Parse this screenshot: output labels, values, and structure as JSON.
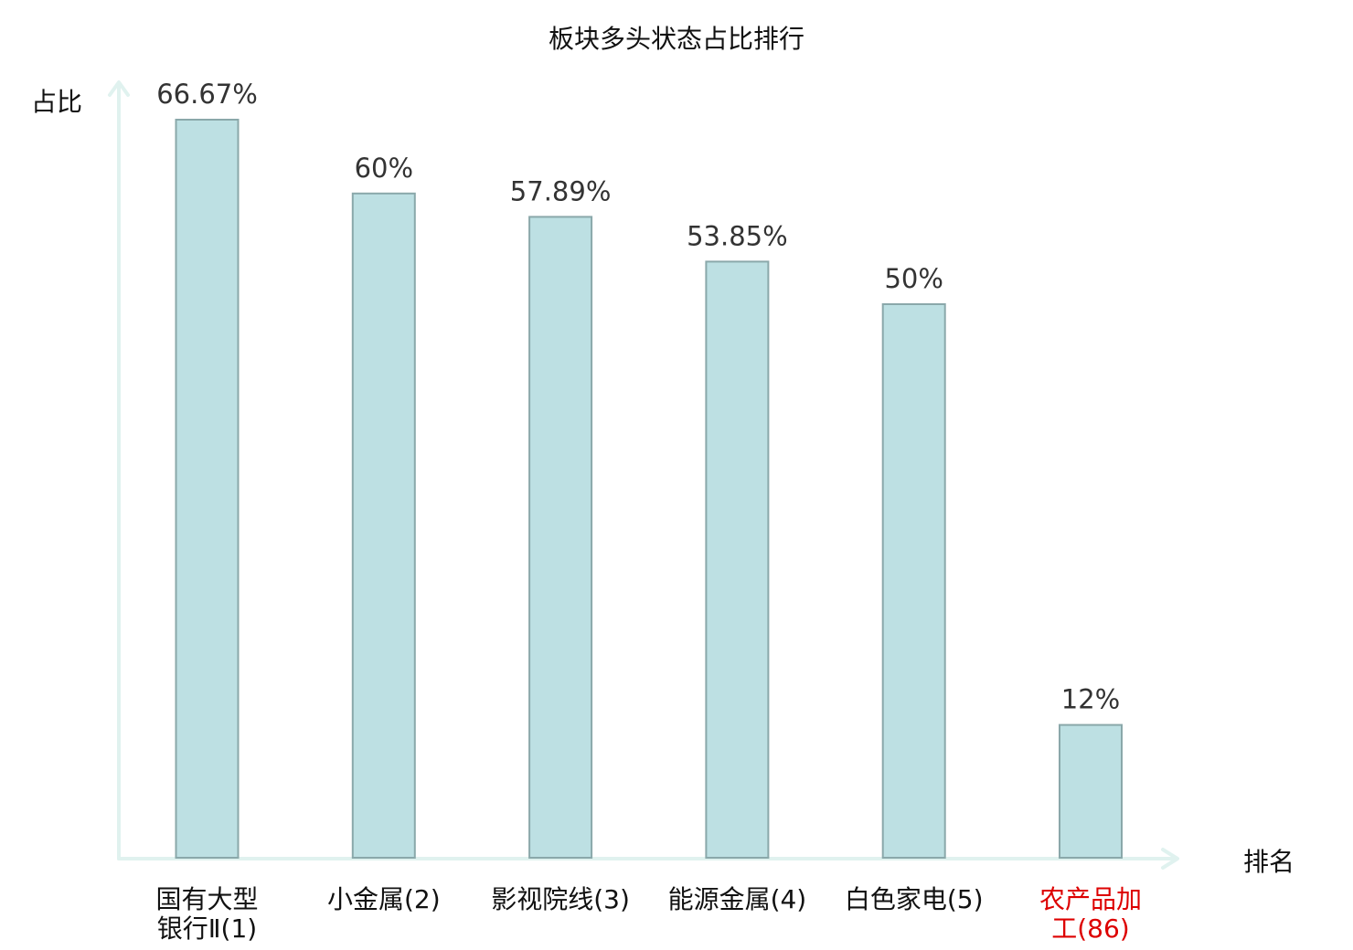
{
  "chart_data": {
    "type": "bar",
    "title": "板块多头状态占比排行",
    "ylabel": "占比",
    "xlabel": "排名",
    "ylim": [
      0,
      70
    ],
    "grid": false,
    "legend": "none",
    "categories": [
      "国有大型银行Ⅱ(1)",
      "小金属(2)",
      "影视院线(3)",
      "能源金属(4)",
      "白色家电(5)",
      "农产品加工(86)"
    ],
    "category_lines": [
      [
        "国有大型",
        "银行Ⅱ(1)"
      ],
      [
        "小金属(2)"
      ],
      [
        "影视院线(3)"
      ],
      [
        "能源金属(4)"
      ],
      [
        "白色家电(5)"
      ],
      [
        "农产品加",
        "工(86)"
      ]
    ],
    "values": [
      66.67,
      60,
      57.89,
      53.85,
      50,
      12
    ],
    "value_labels": [
      "66.67%",
      "60%",
      "57.89%",
      "53.85%",
      "50%",
      "12%"
    ],
    "highlight": [
      false,
      false,
      false,
      false,
      false,
      true
    ]
  },
  "colors": {
    "bar_fill": "#bde0e3",
    "bar_stroke": "#8aa8aa",
    "axis": "#e0f2ef",
    "label_default": "#111111",
    "label_highlight": "#dd0000",
    "value_text": "#333333"
  }
}
